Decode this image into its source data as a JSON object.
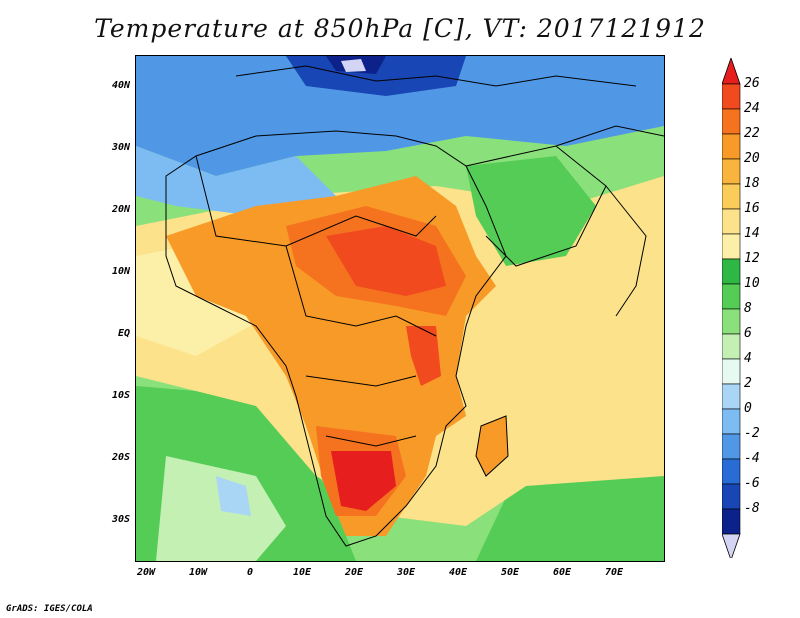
{
  "title": "Temperature at 850hPa [C], VT: 2017121912",
  "credit": "GrADS: IGES/COLA",
  "lat_labels": [
    "40N",
    "30N",
    "20N",
    "10N",
    "EQ",
    "10S",
    "20S",
    "30S"
  ],
  "lon_labels": [
    "20W",
    "10W",
    "0",
    "10E",
    "20E",
    "30E",
    "40E",
    "50E",
    "60E",
    "70E"
  ],
  "colorbar": {
    "labels": [
      "26",
      "24",
      "22",
      "20",
      "18",
      "16",
      "14",
      "12",
      "10",
      "8",
      "6",
      "4",
      "2",
      "0",
      "-2",
      "-4",
      "-6",
      "-8"
    ],
    "colors": [
      "#e61e1e",
      "#f04a1e",
      "#f5731e",
      "#f89a28",
      "#f8b43c",
      "#fbcc5a",
      "#fce28a",
      "#fcf0a8",
      "#2fb745",
      "#55cc55",
      "#8ae07a",
      "#c4f0b4",
      "#e6faf2",
      "#aad6f6",
      "#7cbcf2",
      "#5098e6",
      "#2a6cd6",
      "#1846b4",
      "#0c228a",
      "#d4d4f4"
    ]
  },
  "map_colors": {
    "ocean_cool": "#8ae07a",
    "ocean_mild": "#fce28a",
    "warm": "#f89a28",
    "hot": "#f04a1e",
    "cold": "#5098e6",
    "very_cold": "#1846b4",
    "border": "#000000"
  }
}
